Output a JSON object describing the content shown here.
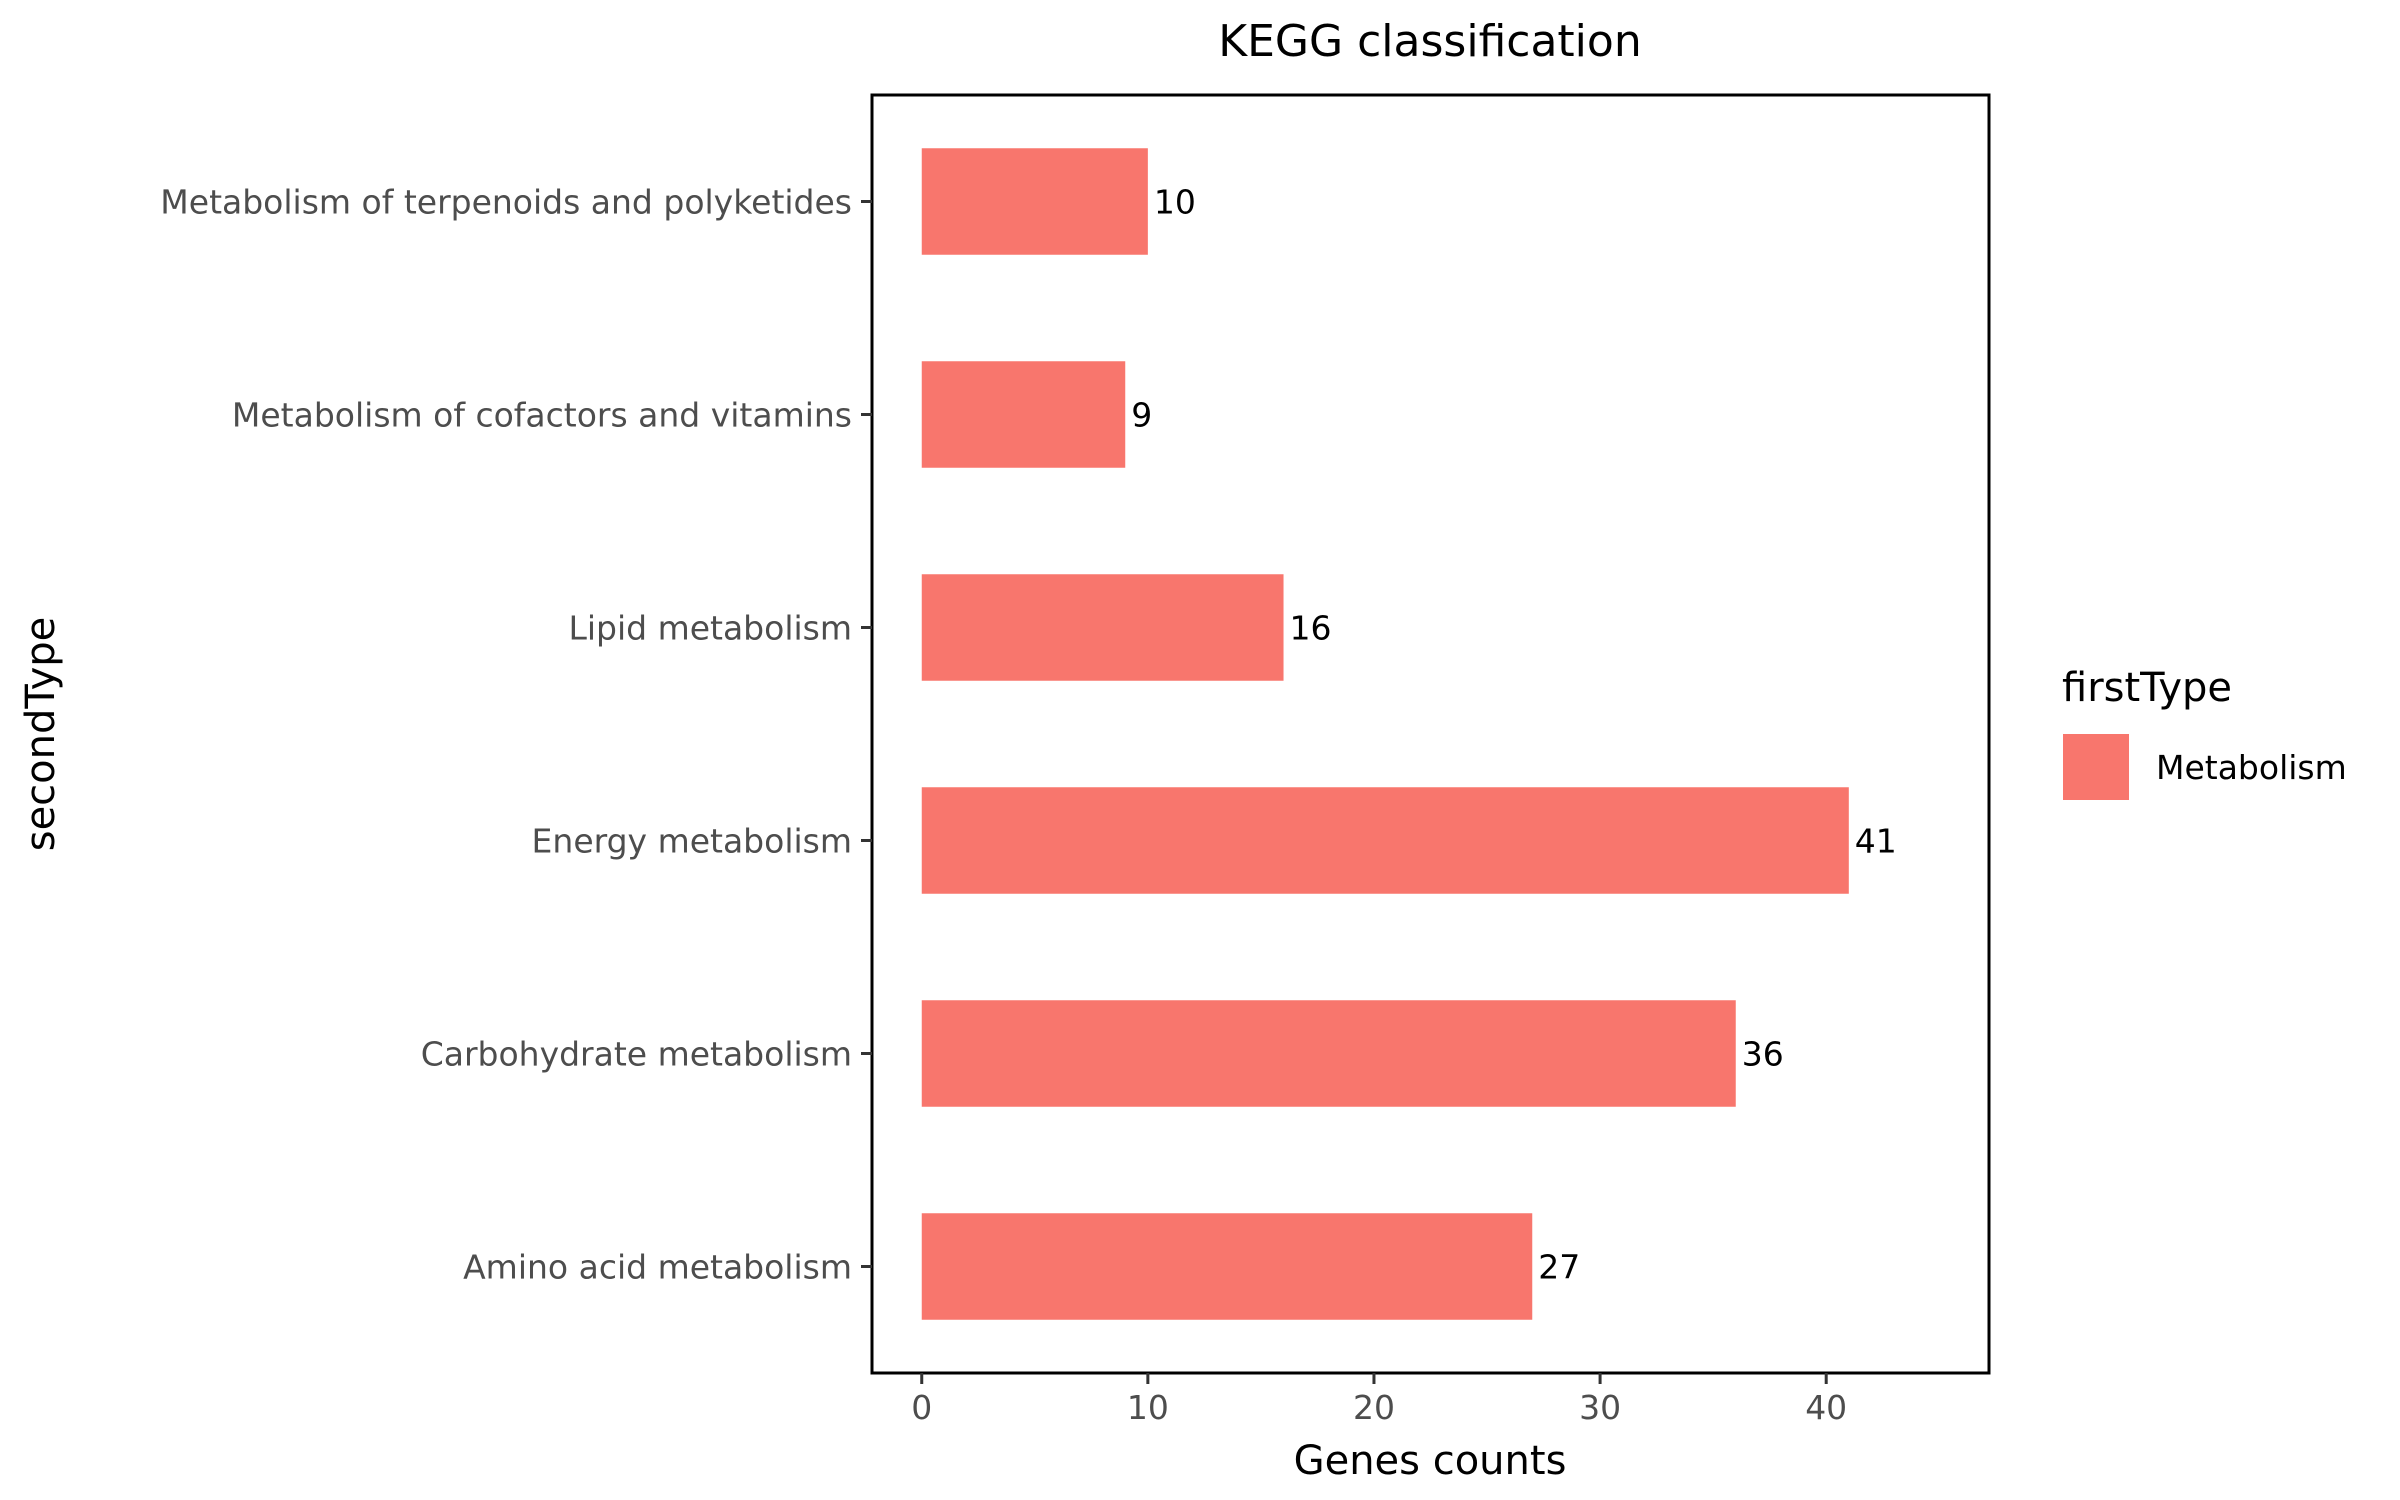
{
  "chart_data": {
    "type": "bar",
    "orientation": "horizontal",
    "title": "KEGG classification",
    "xlabel": "Genes counts",
    "ylabel": "secondType",
    "categories": [
      "Amino acid metabolism",
      "Carbohydrate metabolism",
      "Energy metabolism",
      "Lipid metabolism",
      "Metabolism of cofactors and vitamins",
      "Metabolism of terpenoids and polyketides"
    ],
    "series": [
      {
        "name": "Metabolism",
        "values": [
          27,
          36,
          41,
          16,
          9,
          10
        ]
      }
    ],
    "data_labels": [
      "27",
      "36",
      "41",
      "16",
      "9",
      "10"
    ],
    "x_ticks": [
      0,
      10,
      20,
      30,
      40
    ],
    "x_tick_labels": [
      "0",
      "10",
      "20",
      "30",
      "40"
    ],
    "xlim": [
      -2.2,
      47.2
    ],
    "grid": false,
    "legend": {
      "title": "firstType",
      "position": "right"
    },
    "colors": {
      "bar": "#F8766D",
      "frame": "#000000",
      "tick_text": "#4d4d4d"
    }
  }
}
